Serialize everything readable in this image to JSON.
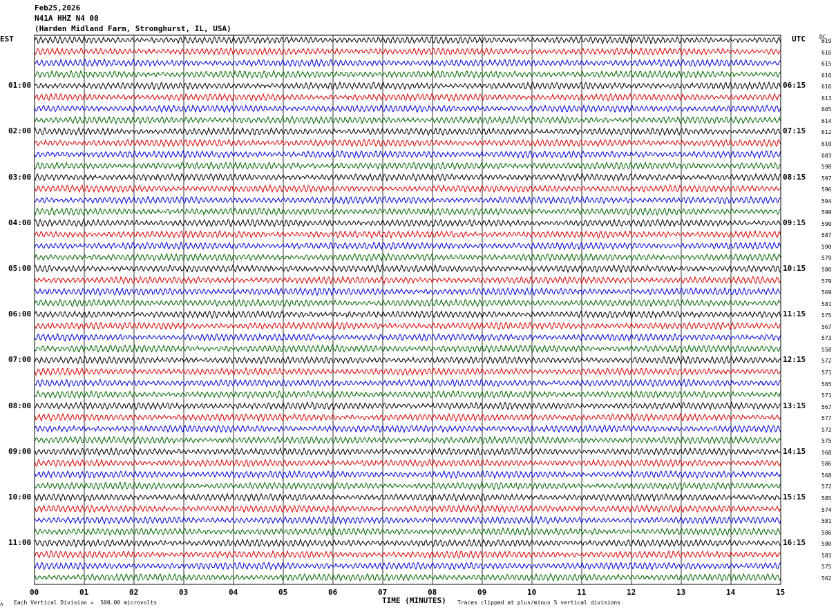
{
  "header": {
    "date": "Feb25,2026",
    "station": "N41A HHZ N4 00",
    "location": "(Harden Midland Farm, Stronghurst, IL, USA)"
  },
  "labels": {
    "left_tz": "EST",
    "right_tz": "UTC",
    "dc_header": "DC",
    "xlabel": "TIME (MINUTES)",
    "scale_note": "Each Vertical Division =  500.00 microvolts",
    "clip_note": "Traces clipped at plus/minus 5 vertical divisions"
  },
  "colors": {
    "cycle": [
      "#000000",
      "#dd0000",
      "#0000dd",
      "#006600"
    ],
    "grid": "#000000",
    "background": "#ffffff"
  },
  "chart_data": {
    "type": "line",
    "title": "Feb25,2026 N41A HHZ N4 00 (Harden Midland Farm, Stronghurst, IL, USA)",
    "xlabel": "TIME (MINUTES)",
    "xlim": [
      0,
      15
    ],
    "x_ticks": [
      "00",
      "01",
      "02",
      "03",
      "04",
      "05",
      "06",
      "07",
      "08",
      "09",
      "10",
      "11",
      "12",
      "13",
      "14",
      "15"
    ],
    "trace_count": 48,
    "minutes_per_trace": 15,
    "left_hour_labels": [
      "01:00",
      "02:00",
      "03:00",
      "04:00",
      "05:00",
      "06:00",
      "07:00",
      "08:00",
      "09:00",
      "10:00",
      "11:00"
    ],
    "right_hour_labels": [
      "06:15",
      "07:15",
      "08:15",
      "09:15",
      "10:15",
      "11:15",
      "12:15",
      "13:15",
      "14:15",
      "15:15",
      "16:15"
    ],
    "dc_offsets": [
      619,
      616,
      615,
      616,
      616,
      613,
      605,
      614,
      612,
      610,
      603,
      598,
      597,
      596,
      594,
      599,
      590,
      587,
      590,
      579,
      580,
      579,
      569,
      581,
      575,
      567,
      573,
      558,
      572,
      571,
      565,
      571,
      567,
      577,
      572,
      575,
      568,
      586,
      568,
      572,
      585,
      574,
      581,
      586,
      580,
      583,
      575,
      562
    ],
    "grid": true
  }
}
